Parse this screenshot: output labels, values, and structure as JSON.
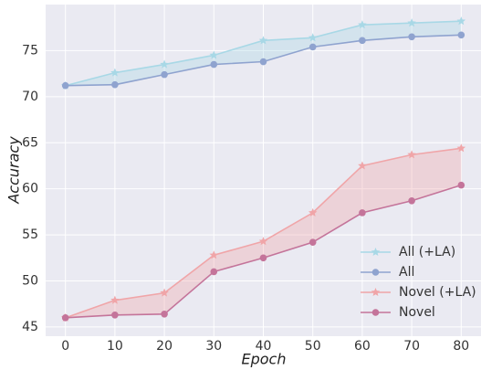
{
  "chart_data": {
    "type": "line",
    "x_label": "Epoch",
    "y_label": "Accuracy",
    "x": [
      0,
      10,
      20,
      30,
      40,
      50,
      60,
      70,
      80
    ],
    "xlim": [
      -4,
      84
    ],
    "xticks": [
      0,
      10,
      20,
      30,
      40,
      50,
      60,
      70,
      80
    ],
    "ylim": [
      44,
      80
    ],
    "yticks": [
      45,
      50,
      55,
      60,
      65,
      70,
      75
    ],
    "grid": true,
    "legend": "lower right",
    "series": [
      {
        "name": "All (+LA)",
        "color": "#a8d8e6",
        "marker": "star",
        "values": [
          71.2,
          72.6,
          73.5,
          74.5,
          76.1,
          76.4,
          77.8,
          78.0,
          78.2
        ]
      },
      {
        "name": "All",
        "color": "#8fa3cf",
        "marker": "circle",
        "values": [
          71.2,
          71.3,
          72.4,
          73.5,
          73.8,
          75.4,
          76.1,
          76.5,
          76.7
        ]
      },
      {
        "name": "Novel (+LA)",
        "color": "#f0a5a8",
        "marker": "star",
        "values": [
          46.0,
          47.9,
          48.7,
          52.8,
          54.3,
          57.4,
          62.5,
          63.7,
          64.4
        ]
      },
      {
        "name": "Novel",
        "color": "#c4749a",
        "marker": "circle",
        "values": [
          46.0,
          46.3,
          46.4,
          51.0,
          52.5,
          54.2,
          57.4,
          58.7,
          60.4
        ]
      }
    ],
    "fill_between": [
      [
        0,
        1
      ],
      [
        2,
        3
      ]
    ]
  }
}
